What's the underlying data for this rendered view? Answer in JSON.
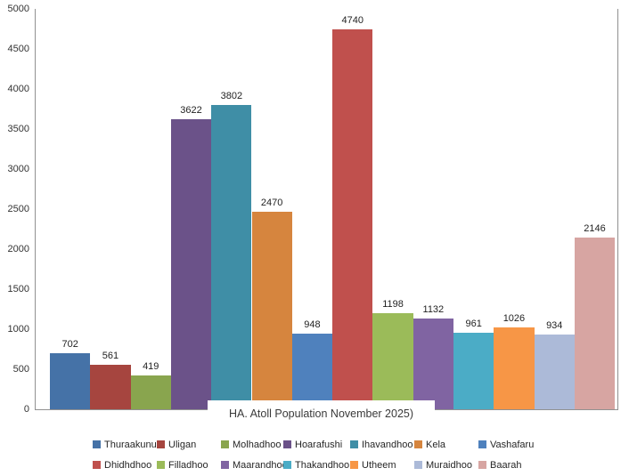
{
  "chart_data": {
    "type": "bar",
    "title": "HA. Atoll Population November 2025)",
    "categories": [
      "Thuraakunu",
      "Uligan",
      "Molhadhoo",
      "Hoarafushi",
      "Ihavandhoo",
      "Kela",
      "Vashafaru",
      "Dhidhdhoo",
      "Filladhoo",
      "Maarandhoo",
      "Thakandhoo",
      "Utheem",
      "Muraidhoo",
      "Baarah"
    ],
    "series": [
      {
        "name": "Thuraakunu",
        "value": 702,
        "color": "#4572A7"
      },
      {
        "name": "Uligan",
        "value": 561,
        "color": "#A6453F"
      },
      {
        "name": "Molhadhoo",
        "value": 419,
        "color": "#89A54E"
      },
      {
        "name": "Hoarafushi",
        "value": 3622,
        "color": "#6B5289"
      },
      {
        "name": "Ihavandhoo",
        "value": 3802,
        "color": "#3F8EA6"
      },
      {
        "name": "Kela",
        "value": 2470,
        "color": "#D6853E"
      },
      {
        "name": "Vashafaru",
        "value": 948,
        "color": "#4F81BD"
      },
      {
        "name": "Dhidhdhoo",
        "value": 4740,
        "color": "#C0504D"
      },
      {
        "name": "Filladhoo",
        "value": 1198,
        "color": "#9BBB59"
      },
      {
        "name": "Maarandhoo",
        "value": 1132,
        "color": "#8064A2"
      },
      {
        "name": "Thakandhoo",
        "value": 961,
        "color": "#4BACC6"
      },
      {
        "name": "Utheem",
        "value": 1026,
        "color": "#F79646"
      },
      {
        "name": "Muraidhoo",
        "value": 934,
        "color": "#ACBAD8"
      },
      {
        "name": "Baarah",
        "value": 2146,
        "color": "#D7A5A2"
      }
    ],
    "xlabel": "",
    "ylabel": "",
    "ylim": [
      0,
      5000
    ],
    "yticks": [
      0,
      500,
      1000,
      1500,
      2000,
      2500,
      3000,
      3500,
      4000,
      4500,
      5000
    ],
    "grid": false,
    "legend_position": "bottom"
  }
}
